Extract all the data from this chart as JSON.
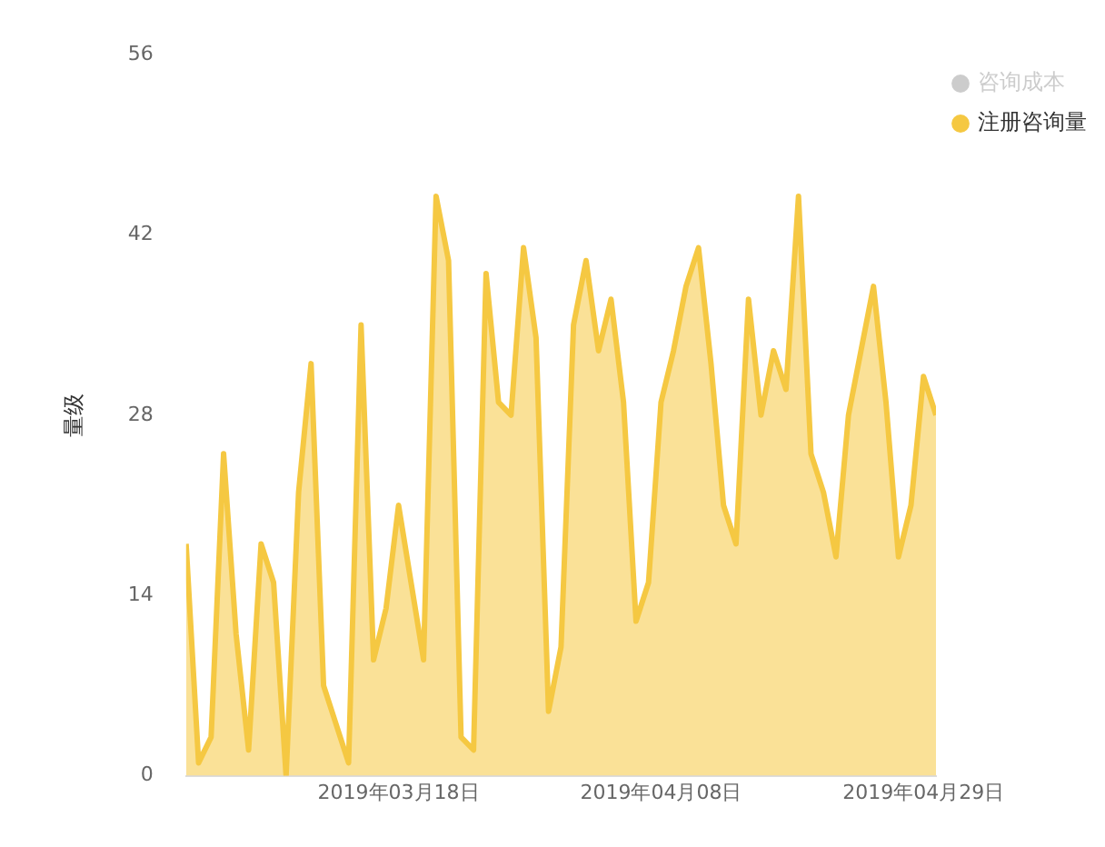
{
  "chart_data": {
    "type": "area",
    "ylabel": "量级",
    "x": [
      "2019-03-01",
      "2019-03-02",
      "2019-03-03",
      "2019-03-04",
      "2019-03-05",
      "2019-03-06",
      "2019-03-07",
      "2019-03-08",
      "2019-03-09",
      "2019-03-10",
      "2019-03-11",
      "2019-03-12",
      "2019-03-13",
      "2019-03-14",
      "2019-03-15",
      "2019-03-16",
      "2019-03-17",
      "2019-03-18",
      "2019-03-19",
      "2019-03-20",
      "2019-03-21",
      "2019-03-22",
      "2019-03-23",
      "2019-03-24",
      "2019-03-25",
      "2019-03-26",
      "2019-03-27",
      "2019-03-28",
      "2019-03-29",
      "2019-03-30",
      "2019-03-31",
      "2019-04-01",
      "2019-04-02",
      "2019-04-03",
      "2019-04-04",
      "2019-04-05",
      "2019-04-06",
      "2019-04-07",
      "2019-04-08",
      "2019-04-09",
      "2019-04-10",
      "2019-04-11",
      "2019-04-12",
      "2019-04-13",
      "2019-04-14",
      "2019-04-15",
      "2019-04-16",
      "2019-04-17",
      "2019-04-18",
      "2019-04-19",
      "2019-04-20",
      "2019-04-21",
      "2019-04-22",
      "2019-04-23",
      "2019-04-24",
      "2019-04-25",
      "2019-04-26",
      "2019-04-27",
      "2019-04-28",
      "2019-04-29",
      "2019-04-30"
    ],
    "series": [
      {
        "name": "咨询成本",
        "color": "#cccccc",
        "values": [
          null,
          null,
          null,
          null,
          null,
          null,
          null,
          null,
          null,
          null,
          null,
          null,
          null,
          null,
          null,
          null,
          null,
          null,
          null,
          null,
          null,
          null,
          null,
          null,
          null,
          null,
          null,
          null,
          null,
          null,
          null,
          null,
          null,
          null,
          null,
          null,
          null,
          null,
          null,
          null,
          null,
          null,
          null,
          null,
          null,
          null,
          null,
          null,
          null,
          null,
          null,
          null,
          null,
          null,
          null,
          null,
          null,
          null,
          null,
          null,
          null
        ]
      },
      {
        "name": "注册咨询量",
        "color": "#f5c842",
        "values": [
          18,
          1,
          3,
          25,
          11,
          2,
          18,
          15,
          0,
          22,
          32,
          7,
          4,
          1,
          35,
          9,
          13,
          21,
          15,
          9,
          45,
          40,
          3,
          2,
          39,
          29,
          28,
          41,
          34,
          5,
          10,
          35,
          40,
          33,
          37,
          29,
          12,
          15,
          29,
          33,
          38,
          41,
          32,
          21,
          18,
          37,
          28,
          33,
          30,
          45,
          25,
          22,
          17,
          28,
          33,
          38,
          29,
          17,
          21,
          31,
          28
        ]
      }
    ],
    "xlim": [
      "2019-03-01",
      "2019-04-30"
    ],
    "xticks": [
      {
        "value": "2019-03-18",
        "label": "2019年03月18日"
      },
      {
        "value": "2019-04-08",
        "label": "2019年04月08日"
      },
      {
        "value": "2019-04-29",
        "label": "2019年04月29日"
      }
    ],
    "ylim": [
      0,
      56
    ],
    "yticks": [
      0,
      14,
      28,
      42,
      56
    ],
    "grid": false,
    "legend": "top right",
    "marker": "none",
    "line_style": "solid"
  }
}
